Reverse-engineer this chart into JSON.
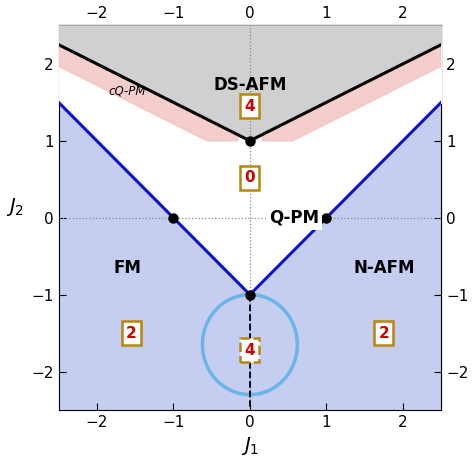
{
  "xlim": [
    -2.5,
    2.5
  ],
  "ylim": [
    -2.5,
    2.5
  ],
  "xticks": [
    -2,
    -1,
    0,
    1,
    2
  ],
  "yticks": [
    -2,
    -1,
    0,
    1,
    2
  ],
  "xlabel": "$J_1$",
  "ylabel": "$J_2$",
  "bg_color": "#ffffff",
  "ds_afm_color": "#d0d0d0",
  "cqpm_color": "#f2b8b8",
  "fm_nafm_color": "#c5cdf0",
  "black_curve_color": "#000000",
  "blue_curve_color": "#1010cc",
  "light_blue_color": "#6ab4e8",
  "dot_color": "#000000",
  "dotted_line_color": "#888888",
  "label_DS_AFM": "DS-AFM",
  "label_cQPM": "cQ-PM",
  "label_QPM": "Q-PM",
  "label_FM": "FM",
  "label_NAFM": "N-AFM",
  "num_4_top": "4",
  "num_0": "0",
  "num_2_left": "2",
  "num_2_right": "2",
  "num_4_bottom": "4",
  "special_points": [
    [
      0,
      1
    ],
    [
      -1,
      0
    ],
    [
      1,
      0
    ],
    [
      0,
      -1
    ]
  ],
  "box_color": "#b8860b",
  "box_text_color": "#cc0000",
  "figsize": [
    4.74,
    4.63
  ],
  "dpi": 100
}
